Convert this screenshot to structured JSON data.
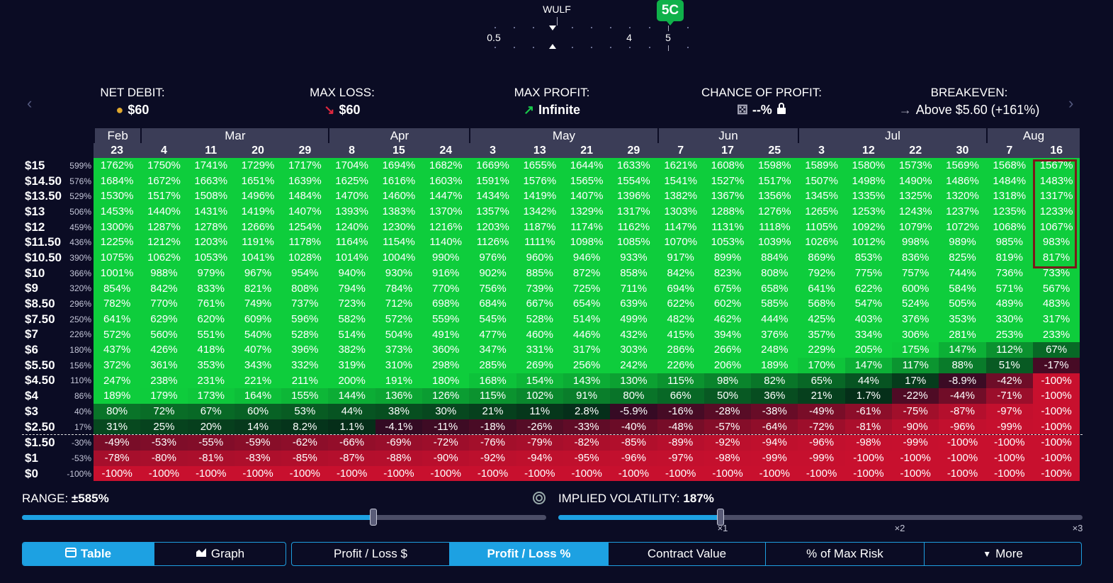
{
  "strike": {
    "ticker": "WULF",
    "selected_badge": "5C",
    "labels": [
      "0.5",
      "4",
      "5"
    ]
  },
  "summary": {
    "net_debit": {
      "label": "NET DEBIT:",
      "value": "$60"
    },
    "max_loss": {
      "label": "MAX LOSS:",
      "value": "$60"
    },
    "max_profit": {
      "label": "MAX PROFIT:",
      "value": "Infinite"
    },
    "chance_of_profit": {
      "label": "CHANCE OF PROFIT:",
      "value": "--%"
    },
    "breakeven": {
      "label": "BREAKEVEN:",
      "value": "Above $5.60 (+161%)"
    }
  },
  "table": {
    "months": [
      {
        "name": "Feb",
        "span": 1
      },
      {
        "name": "Mar",
        "span": 4
      },
      {
        "name": "Apr",
        "span": 3
      },
      {
        "name": "May",
        "span": 4
      },
      {
        "name": "Jun",
        "span": 3
      },
      {
        "name": "Jul",
        "span": 4
      },
      {
        "name": "Aug",
        "span": 2
      }
    ],
    "days": [
      "23",
      "4",
      "11",
      "20",
      "29",
      "8",
      "15",
      "24",
      "3",
      "13",
      "21",
      "29",
      "7",
      "17",
      "25",
      "3",
      "12",
      "22",
      "30",
      "7",
      "16"
    ],
    "rows": [
      {
        "price": "$15",
        "pct": "599%",
        "cells": [
          "1762%",
          "1750%",
          "1741%",
          "1729%",
          "1717%",
          "1704%",
          "1694%",
          "1682%",
          "1669%",
          "1655%",
          "1644%",
          "1633%",
          "1621%",
          "1608%",
          "1598%",
          "1589%",
          "1580%",
          "1573%",
          "1569%",
          "1568%",
          "1567%"
        ],
        "vals": [
          1762,
          1750,
          1741,
          1729,
          1717,
          1704,
          1694,
          1682,
          1669,
          1655,
          1644,
          1633,
          1621,
          1608,
          1598,
          1589,
          1580,
          1573,
          1569,
          1568,
          1567
        ]
      },
      {
        "price": "$14.50",
        "pct": "576%",
        "cells": [
          "1684%",
          "1672%",
          "1663%",
          "1651%",
          "1639%",
          "1625%",
          "1616%",
          "1603%",
          "1591%",
          "1576%",
          "1565%",
          "1554%",
          "1541%",
          "1527%",
          "1517%",
          "1507%",
          "1498%",
          "1490%",
          "1486%",
          "1484%",
          "1483%"
        ],
        "vals": [
          1684,
          1672,
          1663,
          1651,
          1639,
          1625,
          1616,
          1603,
          1591,
          1576,
          1565,
          1554,
          1541,
          1527,
          1517,
          1507,
          1498,
          1490,
          1486,
          1484,
          1483
        ]
      },
      {
        "price": "$13.50",
        "pct": "529%",
        "cells": [
          "1530%",
          "1517%",
          "1508%",
          "1496%",
          "1484%",
          "1470%",
          "1460%",
          "1447%",
          "1434%",
          "1419%",
          "1407%",
          "1396%",
          "1382%",
          "1367%",
          "1356%",
          "1345%",
          "1335%",
          "1325%",
          "1320%",
          "1318%",
          "1317%"
        ],
        "vals": [
          1530,
          1517,
          1508,
          1496,
          1484,
          1470,
          1460,
          1447,
          1434,
          1419,
          1407,
          1396,
          1382,
          1367,
          1356,
          1345,
          1335,
          1325,
          1320,
          1318,
          1317
        ]
      },
      {
        "price": "$13",
        "pct": "506%",
        "cells": [
          "1453%",
          "1440%",
          "1431%",
          "1419%",
          "1407%",
          "1393%",
          "1383%",
          "1370%",
          "1357%",
          "1342%",
          "1329%",
          "1317%",
          "1303%",
          "1288%",
          "1276%",
          "1265%",
          "1253%",
          "1243%",
          "1237%",
          "1235%",
          "1233%"
        ],
        "vals": [
          1453,
          1440,
          1431,
          1419,
          1407,
          1393,
          1383,
          1370,
          1357,
          1342,
          1329,
          1317,
          1303,
          1288,
          1276,
          1265,
          1253,
          1243,
          1237,
          1235,
          1233
        ]
      },
      {
        "price": "$12",
        "pct": "459%",
        "cells": [
          "1300%",
          "1287%",
          "1278%",
          "1266%",
          "1254%",
          "1240%",
          "1230%",
          "1216%",
          "1203%",
          "1187%",
          "1174%",
          "1162%",
          "1147%",
          "1131%",
          "1118%",
          "1105%",
          "1092%",
          "1079%",
          "1072%",
          "1068%",
          "1067%"
        ],
        "vals": [
          1300,
          1287,
          1278,
          1266,
          1254,
          1240,
          1230,
          1216,
          1203,
          1187,
          1174,
          1162,
          1147,
          1131,
          1118,
          1105,
          1092,
          1079,
          1072,
          1068,
          1067
        ]
      },
      {
        "price": "$11.50",
        "pct": "436%",
        "cells": [
          "1225%",
          "1212%",
          "1203%",
          "1191%",
          "1178%",
          "1164%",
          "1154%",
          "1140%",
          "1126%",
          "1111%",
          "1098%",
          "1085%",
          "1070%",
          "1053%",
          "1039%",
          "1026%",
          "1012%",
          "998%",
          "989%",
          "985%",
          "983%"
        ],
        "vals": [
          1225,
          1212,
          1203,
          1191,
          1178,
          1164,
          1154,
          1140,
          1126,
          1111,
          1098,
          1085,
          1070,
          1053,
          1039,
          1026,
          1012,
          998,
          989,
          985,
          983
        ]
      },
      {
        "price": "$10.50",
        "pct": "390%",
        "cells": [
          "1075%",
          "1062%",
          "1053%",
          "1041%",
          "1028%",
          "1014%",
          "1004%",
          "990%",
          "976%",
          "960%",
          "946%",
          "933%",
          "917%",
          "899%",
          "884%",
          "869%",
          "853%",
          "836%",
          "825%",
          "819%",
          "817%"
        ],
        "vals": [
          1075,
          1062,
          1053,
          1041,
          1028,
          1014,
          1004,
          990,
          976,
          960,
          946,
          933,
          917,
          899,
          884,
          869,
          853,
          836,
          825,
          819,
          817
        ]
      },
      {
        "price": "$10",
        "pct": "366%",
        "cells": [
          "1001%",
          "988%",
          "979%",
          "967%",
          "954%",
          "940%",
          "930%",
          "916%",
          "902%",
          "885%",
          "872%",
          "858%",
          "842%",
          "823%",
          "808%",
          "792%",
          "775%",
          "757%",
          "744%",
          "736%",
          "733%"
        ],
        "vals": [
          1001,
          988,
          979,
          967,
          954,
          940,
          930,
          916,
          902,
          885,
          872,
          858,
          842,
          823,
          808,
          792,
          775,
          757,
          744,
          736,
          733
        ]
      },
      {
        "price": "$9",
        "pct": "320%",
        "cells": [
          "854%",
          "842%",
          "833%",
          "821%",
          "808%",
          "794%",
          "784%",
          "770%",
          "756%",
          "739%",
          "725%",
          "711%",
          "694%",
          "675%",
          "658%",
          "641%",
          "622%",
          "600%",
          "584%",
          "571%",
          "567%"
        ],
        "vals": [
          854,
          842,
          833,
          821,
          808,
          794,
          784,
          770,
          756,
          739,
          725,
          711,
          694,
          675,
          658,
          641,
          622,
          600,
          584,
          571,
          567
        ]
      },
      {
        "price": "$8.50",
        "pct": "296%",
        "cells": [
          "782%",
          "770%",
          "761%",
          "749%",
          "737%",
          "723%",
          "712%",
          "698%",
          "684%",
          "667%",
          "654%",
          "639%",
          "622%",
          "602%",
          "585%",
          "568%",
          "547%",
          "524%",
          "505%",
          "489%",
          "483%"
        ],
        "vals": [
          782,
          770,
          761,
          749,
          737,
          723,
          712,
          698,
          684,
          667,
          654,
          639,
          622,
          602,
          585,
          568,
          547,
          524,
          505,
          489,
          483
        ]
      },
      {
        "price": "$7.50",
        "pct": "250%",
        "cells": [
          "641%",
          "629%",
          "620%",
          "609%",
          "596%",
          "582%",
          "572%",
          "559%",
          "545%",
          "528%",
          "514%",
          "499%",
          "482%",
          "462%",
          "444%",
          "425%",
          "403%",
          "376%",
          "353%",
          "330%",
          "317%"
        ],
        "vals": [
          641,
          629,
          620,
          609,
          596,
          582,
          572,
          559,
          545,
          528,
          514,
          499,
          482,
          462,
          444,
          425,
          403,
          376,
          353,
          330,
          317
        ]
      },
      {
        "price": "$7",
        "pct": "226%",
        "cells": [
          "572%",
          "560%",
          "551%",
          "540%",
          "528%",
          "514%",
          "504%",
          "491%",
          "477%",
          "460%",
          "446%",
          "432%",
          "415%",
          "394%",
          "376%",
          "357%",
          "334%",
          "306%",
          "281%",
          "253%",
          "233%"
        ],
        "vals": [
          572,
          560,
          551,
          540,
          528,
          514,
          504,
          491,
          477,
          460,
          446,
          432,
          415,
          394,
          376,
          357,
          334,
          306,
          281,
          253,
          233
        ]
      },
      {
        "price": "$6",
        "pct": "180%",
        "cells": [
          "437%",
          "426%",
          "418%",
          "407%",
          "396%",
          "382%",
          "373%",
          "360%",
          "347%",
          "331%",
          "317%",
          "303%",
          "286%",
          "266%",
          "248%",
          "229%",
          "205%",
          "175%",
          "147%",
          "112%",
          "67%"
        ],
        "vals": [
          437,
          426,
          418,
          407,
          396,
          382,
          373,
          360,
          347,
          331,
          317,
          303,
          286,
          266,
          248,
          229,
          205,
          175,
          147,
          112,
          67
        ]
      },
      {
        "price": "$5.50",
        "pct": "156%",
        "cells": [
          "372%",
          "361%",
          "353%",
          "343%",
          "332%",
          "319%",
          "310%",
          "298%",
          "285%",
          "269%",
          "256%",
          "242%",
          "226%",
          "206%",
          "189%",
          "170%",
          "147%",
          "117%",
          "88%",
          "51%",
          "-17%"
        ],
        "vals": [
          372,
          361,
          353,
          343,
          332,
          319,
          310,
          298,
          285,
          269,
          256,
          242,
          226,
          206,
          189,
          170,
          147,
          117,
          88,
          51,
          -17
        ]
      },
      {
        "price": "$4.50",
        "pct": "110%",
        "cells": [
          "247%",
          "238%",
          "231%",
          "221%",
          "211%",
          "200%",
          "191%",
          "180%",
          "168%",
          "154%",
          "143%",
          "130%",
          "115%",
          "98%",
          "82%",
          "65%",
          "44%",
          "17%",
          "-8.9%",
          "-42%",
          "-100%"
        ],
        "vals": [
          247,
          238,
          231,
          221,
          211,
          200,
          191,
          180,
          168,
          154,
          143,
          130,
          115,
          98,
          82,
          65,
          44,
          17,
          -8.9,
          -42,
          -100
        ]
      },
      {
        "price": "$4",
        "pct": "86%",
        "cells": [
          "189%",
          "179%",
          "173%",
          "164%",
          "155%",
          "144%",
          "136%",
          "126%",
          "115%",
          "102%",
          "91%",
          "80%",
          "66%",
          "50%",
          "36%",
          "21%",
          "1.7%",
          "-22%",
          "-44%",
          "-71%",
          "-100%"
        ],
        "vals": [
          189,
          179,
          173,
          164,
          155,
          144,
          136,
          126,
          115,
          102,
          91,
          80,
          66,
          50,
          36,
          21,
          1.7,
          -22,
          -44,
          -71,
          -100
        ]
      },
      {
        "price": "$3",
        "pct": "40%",
        "cells": [
          "80%",
          "72%",
          "67%",
          "60%",
          "53%",
          "44%",
          "38%",
          "30%",
          "21%",
          "11%",
          "2.8%",
          "-5.9%",
          "-16%",
          "-28%",
          "-38%",
          "-49%",
          "-61%",
          "-75%",
          "-87%",
          "-97%",
          "-100%"
        ],
        "vals": [
          80,
          72,
          67,
          60,
          53,
          44,
          38,
          30,
          21,
          11,
          2.8,
          -5.9,
          -16,
          -28,
          -38,
          -49,
          -61,
          -75,
          -87,
          -97,
          -100
        ]
      },
      {
        "price": "$2.50",
        "pct": "17%",
        "cells": [
          "31%",
          "25%",
          "20%",
          "14%",
          "8.2%",
          "1.1%",
          "-4.1%",
          "-11%",
          "-18%",
          "-26%",
          "-33%",
          "-40%",
          "-48%",
          "-57%",
          "-64%",
          "-72%",
          "-81%",
          "-90%",
          "-96%",
          "-99%",
          "-100%"
        ],
        "vals": [
          31,
          25,
          20,
          14,
          8.2,
          1.1,
          -4.1,
          -11,
          -18,
          -26,
          -33,
          -40,
          -48,
          -57,
          -64,
          -72,
          -81,
          -90,
          -96,
          -99,
          -100
        ]
      },
      {
        "price": "$1.50",
        "pct": "-30%",
        "cells": [
          "-49%",
          "-53%",
          "-55%",
          "-59%",
          "-62%",
          "-66%",
          "-69%",
          "-72%",
          "-76%",
          "-79%",
          "-82%",
          "-85%",
          "-89%",
          "-92%",
          "-94%",
          "-96%",
          "-98%",
          "-99%",
          "-100%",
          "-100%",
          "-100%"
        ],
        "vals": [
          -49,
          -53,
          -55,
          -59,
          -62,
          -66,
          -69,
          -72,
          -76,
          -79,
          -82,
          -85,
          -89,
          -92,
          -94,
          -96,
          -98,
          -99,
          -100,
          -100,
          -100
        ]
      },
      {
        "price": "$1",
        "pct": "-53%",
        "cells": [
          "-78%",
          "-80%",
          "-81%",
          "-83%",
          "-85%",
          "-87%",
          "-88%",
          "-90%",
          "-92%",
          "-94%",
          "-95%",
          "-96%",
          "-97%",
          "-98%",
          "-99%",
          "-99%",
          "-100%",
          "-100%",
          "-100%",
          "-100%",
          "-100%"
        ],
        "vals": [
          -78,
          -80,
          -81,
          -83,
          -85,
          -87,
          -88,
          -90,
          -92,
          -94,
          -95,
          -96,
          -97,
          -98,
          -99,
          -99,
          -100,
          -100,
          -100,
          -100,
          -100
        ]
      },
      {
        "price": "$0",
        "pct": "-100%",
        "cells": [
          "-100%",
          "-100%",
          "-100%",
          "-100%",
          "-100%",
          "-100%",
          "-100%",
          "-100%",
          "-100%",
          "-100%",
          "-100%",
          "-100%",
          "-100%",
          "-100%",
          "-100%",
          "-100%",
          "-100%",
          "-100%",
          "-100%",
          "-100%",
          "-100%"
        ],
        "vals": [
          -100,
          -100,
          -100,
          -100,
          -100,
          -100,
          -100,
          -100,
          -100,
          -100,
          -100,
          -100,
          -100,
          -100,
          -100,
          -100,
          -100,
          -100,
          -100,
          -100,
          -100
        ]
      }
    ]
  },
  "range": {
    "label": "RANGE:",
    "value": "±585%",
    "level": 0.67
  },
  "iv": {
    "label": "IMPLIED VOLATILITY:",
    "value": "187%",
    "level": 0.31,
    "marks": [
      "×1",
      "×2",
      "×3"
    ]
  },
  "tabs": {
    "view": [
      {
        "label": "Table",
        "active": true,
        "icon": "table-icon"
      },
      {
        "label": "Graph",
        "active": false,
        "icon": "chart-icon"
      }
    ],
    "metric": [
      {
        "label": "Profit / Loss $",
        "active": false
      },
      {
        "label": "Profit / Loss %",
        "active": true
      },
      {
        "label": "Contract Value",
        "active": false
      },
      {
        "label": "% of Max Risk",
        "active": false
      },
      {
        "label": "More",
        "active": false
      }
    ]
  },
  "colors": {
    "accent": "#1da1e2",
    "profit_green": "#11d13e",
    "loss_red": "#c8102e",
    "background": "#0b0c24"
  }
}
